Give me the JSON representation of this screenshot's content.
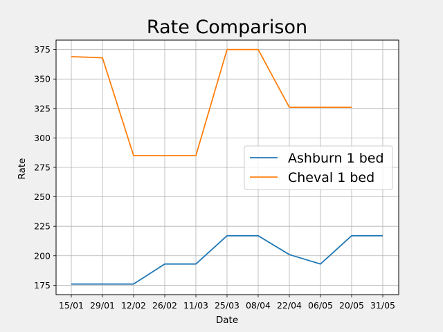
{
  "chart_data": {
    "type": "line",
    "title": "Rate Comparison",
    "xlabel": "Date",
    "ylabel": "Rate",
    "categories": [
      "15/01",
      "29/01",
      "12/02",
      "26/02",
      "11/03",
      "25/03",
      "08/04",
      "22/04",
      "06/05",
      "20/05",
      "31/05"
    ],
    "ylim": [
      167,
      383
    ],
    "yticks": [
      175,
      200,
      225,
      250,
      275,
      300,
      325,
      350,
      375
    ],
    "grid": true,
    "legend_position": "center-right",
    "series": [
      {
        "name": "Ashburn 1 bed",
        "color": "#1f77b4",
        "values": [
          176,
          176,
          176,
          193,
          193,
          217,
          217,
          201,
          193,
          217,
          217
        ]
      },
      {
        "name": "Cheval 1 bed",
        "color": "#ff7f0e",
        "values": [
          369,
          368,
          285,
          285,
          285,
          375,
          375,
          326,
          326,
          326,
          null
        ]
      }
    ]
  }
}
